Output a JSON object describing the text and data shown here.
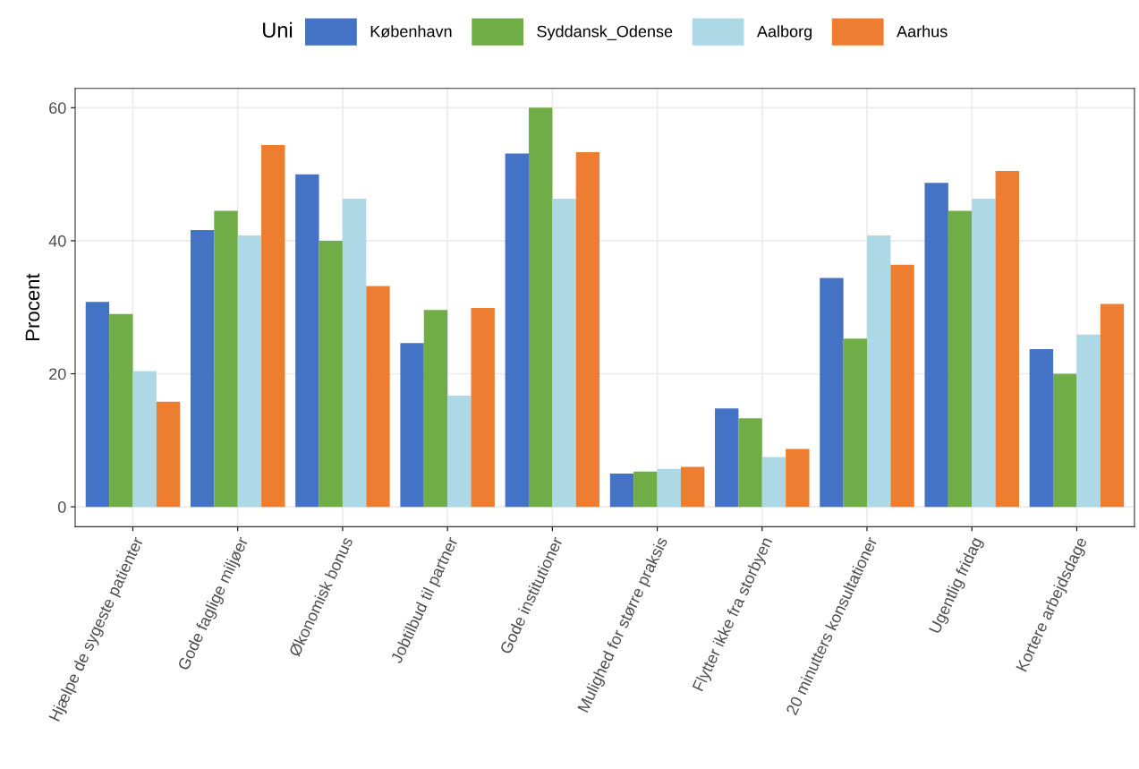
{
  "chart_data": {
    "type": "bar",
    "ylabel": "Procent",
    "legend_title": "Uni",
    "legend": "top",
    "categories": [
      "Hjælpe de sygeste patienter",
      "Gode faglige miljøer",
      "Økonomisk bonus",
      "Jobtilbud til partner",
      "Gode institutioner",
      "Mulighed for større praksis",
      "Flytter ikke fra storbyen",
      "20 minutters konsultationer",
      "Ugentlig fridag",
      "Kortere arbejdsdage"
    ],
    "series": [
      {
        "name": "København",
        "color": "#4472c4",
        "values": [
          30.8,
          41.6,
          50.0,
          24.6,
          53.1,
          5.0,
          14.8,
          34.4,
          48.7,
          23.7
        ]
      },
      {
        "name": "Syddansk_Odense",
        "color": "#70ad47",
        "values": [
          29.0,
          44.5,
          40.0,
          29.6,
          60.0,
          5.3,
          13.3,
          25.3,
          44.5,
          20.0
        ]
      },
      {
        "name": "Aalborg",
        "color": "#add8e6",
        "values": [
          20.4,
          40.8,
          46.3,
          16.7,
          46.3,
          5.7,
          7.5,
          40.8,
          46.3,
          25.9
        ]
      },
      {
        "name": "Aarhus",
        "color": "#ed7d31",
        "values": [
          15.8,
          54.4,
          33.2,
          29.9,
          53.3,
          6.0,
          8.7,
          36.4,
          50.5,
          30.5
        ]
      }
    ],
    "ylim": [
      -3,
      62.9
    ],
    "yticks": [
      0,
      20,
      40,
      60
    ],
    "grid": true
  }
}
